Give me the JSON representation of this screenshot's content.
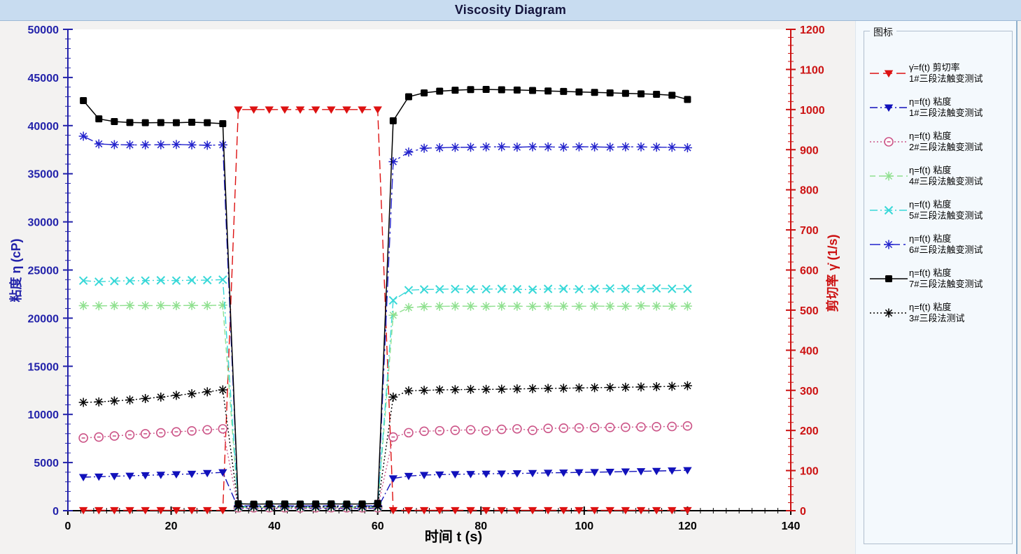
{
  "window": {
    "title_band_color": "#c8dcf0",
    "plot_bg": "#ffffff",
    "panel_bg": "#f4f9fd"
  },
  "chart_data": {
    "type": "line",
    "title": "Viscosity Diagram",
    "xlabel": "时间 t (s)",
    "legend_title": "图标",
    "legend_position": "right",
    "grid": false,
    "x_axis": {
      "min": 0,
      "max": 140,
      "major": 20,
      "minor": 2.5,
      "color": "#000000"
    },
    "left_axis": {
      "label": "粘度 η (cP)",
      "min": 0,
      "max": 50000,
      "major": 5000,
      "minor": 1000,
      "color": "#2222aa"
    },
    "right_axis": {
      "label": "剪切率 γ̇ (1/s)",
      "min": 0,
      "max": 1200,
      "major": 100,
      "minor": 20,
      "color": "#cc1111"
    },
    "x": [
      3,
      6,
      9,
      12,
      15,
      18,
      21,
      24,
      27,
      30,
      33,
      36,
      39,
      42,
      45,
      48,
      51,
      54,
      57,
      60,
      63,
      66,
      69,
      72,
      75,
      78,
      81,
      84,
      87,
      90,
      93,
      96,
      99,
      102,
      105,
      108,
      111,
      114,
      117,
      120
    ],
    "series": [
      {
        "name": "shear-rate-1",
        "axis": "right",
        "color": "#dd1111",
        "line_style": "long-dash",
        "marker": "tri-down",
        "legend_line1": "γ̇=f(t) 剪切率",
        "legend_line2": "1#三段法触变测试",
        "values": [
          1,
          1,
          1,
          1,
          1,
          1,
          1,
          1,
          1,
          1,
          1000,
          1000,
          1000,
          1000,
          1000,
          1000,
          1000,
          1000,
          1000,
          1000,
          1,
          1,
          1,
          1,
          1,
          1,
          1,
          1,
          1,
          1,
          1,
          1,
          1,
          1,
          1,
          1,
          1,
          1,
          1,
          1
        ]
      },
      {
        "name": "viscosity-1",
        "axis": "left",
        "color": "#1111bb",
        "line_style": "dash-dot",
        "marker": "tri-down",
        "legend_line1": "η=f(t) 粘度",
        "legend_line2": "1#三段法触变测试",
        "values": [
          3480,
          3530,
          3580,
          3620,
          3670,
          3720,
          3770,
          3820,
          3900,
          3980,
          260,
          240,
          250,
          250,
          240,
          250,
          250,
          240,
          250,
          260,
          3350,
          3600,
          3700,
          3750,
          3780,
          3800,
          3830,
          3850,
          3870,
          3900,
          3930,
          3950,
          3980,
          4000,
          4030,
          4060,
          4090,
          4120,
          4160,
          4200
        ]
      },
      {
        "name": "viscosity-2",
        "axis": "left",
        "color": "#cc5588",
        "line_style": "dot",
        "marker": "circle-dot",
        "legend_line1": "η=f(t) 粘度",
        "legend_line2": "2#三段法触变测试",
        "values": [
          7550,
          7650,
          7760,
          7880,
          7990,
          8090,
          8190,
          8290,
          8400,
          8500,
          300,
          300,
          310,
          300,
          290,
          300,
          310,
          300,
          300,
          310,
          7650,
          8100,
          8250,
          8300,
          8350,
          8400,
          8300,
          8450,
          8500,
          8350,
          8550,
          8580,
          8600,
          8620,
          8650,
          8670,
          8700,
          8720,
          8750,
          8800
        ]
      },
      {
        "name": "viscosity-4",
        "axis": "left",
        "color": "#8fe08f",
        "line_style": "dash",
        "marker": "asterisk",
        "legend_line1": "η=f(t) 粘度",
        "legend_line2": "4#三段法触变测试",
        "values": [
          21300,
          21280,
          21300,
          21320,
          21300,
          21310,
          21300,
          21320,
          21310,
          21350,
          350,
          350,
          360,
          350,
          340,
          350,
          360,
          350,
          350,
          360,
          20300,
          21100,
          21200,
          21230,
          21250,
          21240,
          21220,
          21250,
          21240,
          21220,
          21250,
          21240,
          21230,
          21250,
          21240,
          21230,
          21280,
          21250,
          21240,
          21250
        ]
      },
      {
        "name": "viscosity-5",
        "axis": "left",
        "color": "#38d8d8",
        "line_style": "dash-dot",
        "marker": "x",
        "legend_line1": "η=f(t) 粘度",
        "legend_line2": "5#三段法触变测试",
        "values": [
          23900,
          23780,
          23850,
          23880,
          23900,
          23930,
          23900,
          23940,
          23950,
          24000,
          450,
          450,
          460,
          450,
          440,
          450,
          460,
          450,
          450,
          460,
          21850,
          22900,
          22980,
          23000,
          23030,
          23000,
          23010,
          23040,
          23000,
          22960,
          23040,
          23050,
          23010,
          23050,
          23080,
          23050,
          23050,
          23090,
          23050,
          23050
        ]
      },
      {
        "name": "viscosity-6",
        "axis": "left",
        "color": "#2222cc",
        "line_style": "dash-dot-long",
        "marker": "asterisk",
        "legend_line1": "η=f(t) 粘度",
        "legend_line2": "6#三段法触变测试",
        "values": [
          38900,
          38100,
          38020,
          38000,
          38000,
          38010,
          38040,
          38000,
          37960,
          38000,
          500,
          500,
          510,
          500,
          490,
          500,
          510,
          500,
          500,
          510,
          36250,
          37250,
          37650,
          37700,
          37740,
          37750,
          37790,
          37800,
          37760,
          37800,
          37790,
          37760,
          37800,
          37790,
          37760,
          37800,
          37790,
          37760,
          37750,
          37700
        ]
      },
      {
        "name": "viscosity-7",
        "axis": "left",
        "color": "#000000",
        "line_style": "solid",
        "marker": "square",
        "legend_line1": "η=f(t) 粘度",
        "legend_line2": "7#三段法触变测试",
        "values": [
          42600,
          40700,
          40420,
          40320,
          40300,
          40310,
          40300,
          40350,
          40300,
          40200,
          720,
          680,
          700,
          700,
          690,
          700,
          710,
          690,
          700,
          760,
          40500,
          43000,
          43400,
          43580,
          43680,
          43740,
          43760,
          43720,
          43700,
          43650,
          43600,
          43550,
          43500,
          43450,
          43400,
          43350,
          43300,
          43250,
          43150,
          42720
        ]
      },
      {
        "name": "viscosity-3",
        "axis": "left",
        "color": "#000000",
        "line_style": "dot",
        "marker": "asterisk",
        "legend_line1": "η=f(t) 粘度",
        "legend_line2": "3#三段法测试",
        "values": [
          11250,
          11300,
          11400,
          11500,
          11650,
          11800,
          11980,
          12150,
          12350,
          12550,
          400,
          400,
          410,
          400,
          390,
          400,
          410,
          400,
          400,
          410,
          11800,
          12450,
          12500,
          12550,
          12570,
          12600,
          12600,
          12620,
          12650,
          12680,
          12700,
          12720,
          12750,
          12780,
          12800,
          12820,
          12850,
          12880,
          12920,
          12980
        ]
      }
    ]
  }
}
